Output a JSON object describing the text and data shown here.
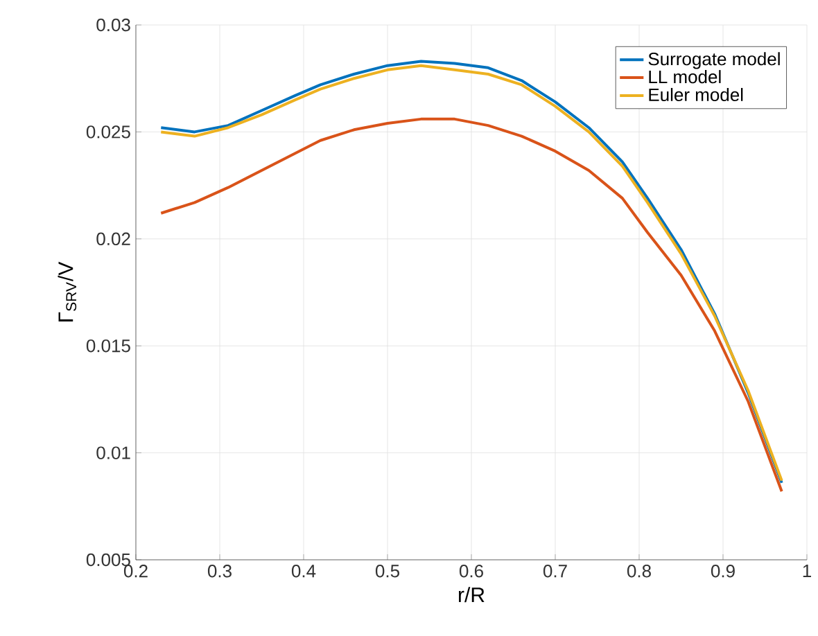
{
  "chart_data": {
    "type": "line",
    "xlabel": "r/R",
    "ylabel": "Γ$_{SRV}$/V",
    "x": [
      0.23,
      0.27,
      0.31,
      0.35,
      0.39,
      0.42,
      0.46,
      0.5,
      0.54,
      0.58,
      0.62,
      0.66,
      0.7,
      0.74,
      0.78,
      0.81,
      0.85,
      0.89,
      0.93,
      0.97
    ],
    "series": [
      {
        "name": "Surrogate model",
        "color": "#0072bd",
        "values": [
          0.0252,
          0.025,
          0.0253,
          0.026,
          0.0267,
          0.0272,
          0.0277,
          0.0281,
          0.0283,
          0.0282,
          0.028,
          0.0274,
          0.0264,
          0.0252,
          0.0236,
          0.0219,
          0.0195,
          0.0165,
          0.0128,
          0.0086
        ]
      },
      {
        "name": "LL model",
        "color": "#d95319",
        "values": [
          0.0212,
          0.0217,
          0.0224,
          0.0232,
          0.024,
          0.0246,
          0.0251,
          0.0254,
          0.0256,
          0.0256,
          0.0253,
          0.0248,
          0.0241,
          0.0232,
          0.0219,
          0.0203,
          0.0183,
          0.0157,
          0.0124,
          0.0082
        ]
      },
      {
        "name": "Euler model",
        "color": "#edb120",
        "values": [
          0.025,
          0.0248,
          0.0252,
          0.0258,
          0.0265,
          0.027,
          0.0275,
          0.0279,
          0.0281,
          0.0279,
          0.0277,
          0.0272,
          0.0262,
          0.025,
          0.0234,
          0.0217,
          0.0193,
          0.0164,
          0.0129,
          0.0087
        ]
      }
    ],
    "xlim": [
      0.2,
      1
    ],
    "xticks": [
      0.2,
      0.3,
      0.4,
      0.5,
      0.6,
      0.7,
      0.8,
      0.9,
      1
    ],
    "ylim": [
      0.005,
      0.03
    ],
    "yticks": [
      0.005,
      0.01,
      0.015,
      0.02,
      0.025,
      0.03
    ],
    "grid": true,
    "legend": "top right",
    "marker": "none",
    "line_style": "solid"
  }
}
